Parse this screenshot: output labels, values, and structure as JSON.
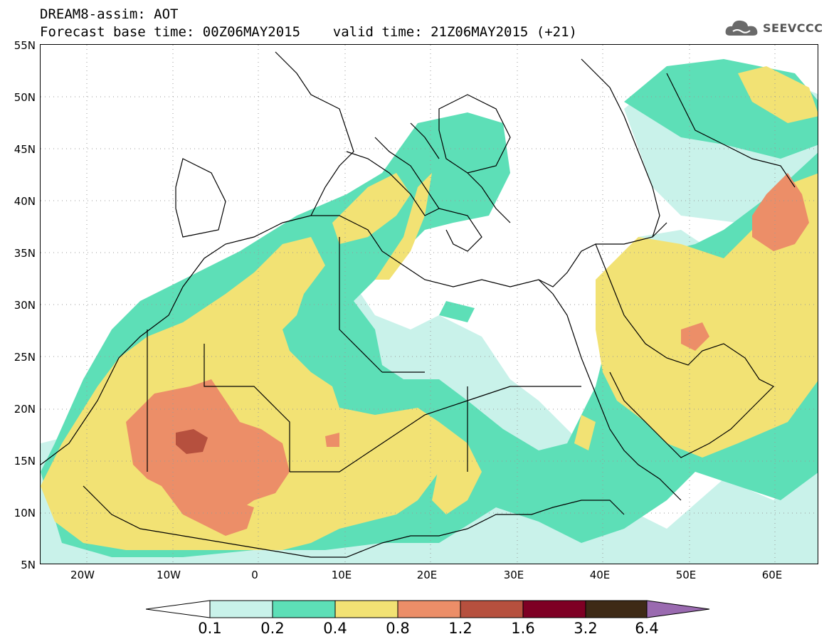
{
  "header": {
    "title_line1": "DREAM8-assim: AOT",
    "title_line2": "Forecast base time: 00Z06MAY2015    valid time: 21Z06MAY2015 (+21)"
  },
  "logo": {
    "text": "SEEVCCC",
    "icon": "cloud-icon"
  },
  "map": {
    "lat_labels": [
      "55N",
      "50N",
      "45N",
      "40N",
      "35N",
      "30N",
      "25N",
      "20N",
      "15N",
      "10N",
      "5N"
    ],
    "lon_labels": [
      "20W",
      "10W",
      "0",
      "10E",
      "20E",
      "30E",
      "40E",
      "50E",
      "60E"
    ],
    "grid": true,
    "extent": {
      "lon": [
        -25,
        65
      ],
      "lat": [
        5,
        55
      ]
    }
  },
  "colorbar": {
    "thresholds": [
      "0.1",
      "0.2",
      "0.4",
      "0.8",
      "1.2",
      "1.6",
      "3.2",
      "6.4"
    ],
    "colors": [
      "#ffffff",
      "#c9f2ea",
      "#5ddfb7",
      "#f2e274",
      "#ec8e68",
      "#b6503e",
      "#7e0024",
      "#3e2a16",
      "#9a6ab0"
    ]
  }
}
